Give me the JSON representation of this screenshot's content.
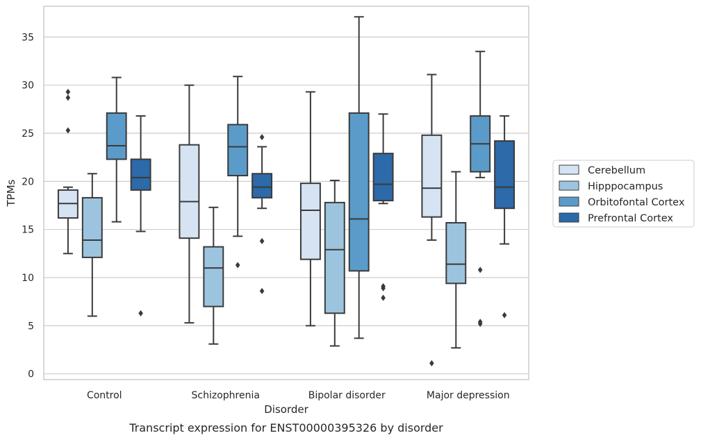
{
  "chart_data": {
    "type": "box",
    "title": "",
    "caption": "Transcript expression for ENST00000395326 by disorder",
    "xlabel": "Disorder",
    "ylabel": "TPMs",
    "ylim": [
      -0.6,
      38.2
    ],
    "yticks": [
      0,
      5,
      10,
      15,
      20,
      25,
      30,
      35
    ],
    "grid": "horizontal",
    "legend_position": "right",
    "categories": [
      "Control",
      "Schizophrenia",
      "Bipolar disorder",
      "Major depression"
    ],
    "series": [
      {
        "name": "Cerebellum",
        "color": "#d5e3f2",
        "boxes": [
          {
            "whislo": 12.5,
            "q1": 16.2,
            "med": 17.7,
            "q3": 19.1,
            "whishi": 19.4,
            "fliers": [
              25.3,
              28.7,
              29.3
            ]
          },
          {
            "whislo": 5.3,
            "q1": 14.1,
            "med": 17.9,
            "q3": 23.8,
            "whishi": 30.0,
            "fliers": []
          },
          {
            "whislo": 5.0,
            "q1": 11.9,
            "med": 17.0,
            "q3": 19.8,
            "whishi": 29.3,
            "fliers": []
          },
          {
            "whislo": 13.9,
            "q1": 16.3,
            "med": 19.3,
            "q3": 24.8,
            "whishi": 31.1,
            "fliers": [
              1.1
            ]
          }
        ]
      },
      {
        "name": "Hipppocampus",
        "color": "#9dc4de",
        "boxes": [
          {
            "whislo": 6.0,
            "q1": 12.1,
            "med": 13.9,
            "q3": 18.3,
            "whishi": 20.8,
            "fliers": []
          },
          {
            "whislo": 3.1,
            "q1": 7.0,
            "med": 11.0,
            "q3": 13.2,
            "whishi": 17.3,
            "fliers": []
          },
          {
            "whislo": 2.9,
            "q1": 6.3,
            "med": 12.9,
            "q3": 17.8,
            "whishi": 20.1,
            "fliers": []
          },
          {
            "whislo": 2.7,
            "q1": 9.4,
            "med": 11.4,
            "q3": 15.7,
            "whishi": 21.0,
            "fliers": []
          }
        ]
      },
      {
        "name": "Orbitofontal Cortex",
        "color": "#5b9bc9",
        "boxes": [
          {
            "whislo": 15.8,
            "q1": 22.3,
            "med": 23.7,
            "q3": 27.1,
            "whishi": 30.8,
            "fliers": []
          },
          {
            "whislo": 14.3,
            "q1": 20.6,
            "med": 23.6,
            "q3": 25.9,
            "whishi": 30.9,
            "fliers": [
              11.3
            ]
          },
          {
            "whislo": 3.7,
            "q1": 10.7,
            "med": 16.1,
            "q3": 27.1,
            "whishi": 37.1,
            "fliers": []
          },
          {
            "whislo": 20.4,
            "q1": 21.0,
            "med": 23.9,
            "q3": 26.8,
            "whishi": 33.5,
            "fliers": [
              5.2,
              5.4,
              10.8
            ]
          }
        ]
      },
      {
        "name": "Prefrontal Cortex",
        "color": "#2c6aa9",
        "boxes": [
          {
            "whislo": 14.8,
            "q1": 19.1,
            "med": 20.4,
            "q3": 22.3,
            "whishi": 26.8,
            "fliers": [
              6.3
            ]
          },
          {
            "whislo": 17.2,
            "q1": 18.3,
            "med": 19.4,
            "q3": 20.8,
            "whishi": 23.6,
            "fliers": [
              8.6,
              13.8,
              24.6
            ]
          },
          {
            "whislo": 17.7,
            "q1": 18.0,
            "med": 19.7,
            "q3": 22.9,
            "whishi": 27.0,
            "fliers": [
              7.9,
              8.9,
              9.1
            ]
          },
          {
            "whislo": 13.5,
            "q1": 17.2,
            "med": 19.4,
            "q3": 24.2,
            "whishi": 26.8,
            "fliers": [
              6.1
            ]
          }
        ]
      }
    ]
  }
}
